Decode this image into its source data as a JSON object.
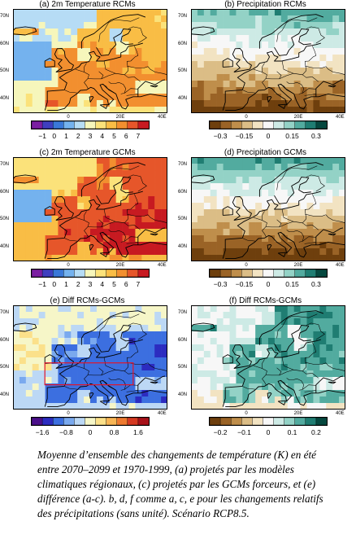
{
  "panels": [
    {
      "title": "(a) 2m Temperature RCMs",
      "field": "temp_rcm",
      "lat_labels": [
        "70N",
        "60N",
        "50N",
        "40N"
      ],
      "lon_labels": [
        "0",
        "20E",
        "40E"
      ],
      "colorbar_ticks": [
        "−1",
        "0",
        "1",
        "2",
        "3",
        "4",
        "5",
        "6",
        "7"
      ],
      "colors": [
        "#7b1fa2",
        "#3f3fbf",
        "#3a78d8",
        "#74b2ee",
        "#b6dcf5",
        "#f6f6bb",
        "#fbe27a",
        "#f9bd45",
        "#f28f2f",
        "#e6562a",
        "#c71a21"
      ]
    },
    {
      "title": "(b) Precipitation RCMs",
      "field": "prec_rcm",
      "lat_labels": [
        "70N",
        "60N",
        "50N",
        "40N"
      ],
      "lon_labels": [
        "0",
        "20E",
        "40E"
      ],
      "colorbar_ticks": [
        "−0.3",
        "−0.15",
        "0",
        "0.15",
        "0.3"
      ],
      "colors": [
        "#6e3f0d",
        "#9a6326",
        "#bf8e4b",
        "#dbbd86",
        "#f2e3c2",
        "#f7f7f7",
        "#cdeae5",
        "#93d2c6",
        "#52ab9f",
        "#1f7d72",
        "#05483f"
      ]
    },
    {
      "title": "(c) 2m Temperature GCMs",
      "field": "temp_gcm",
      "lat_labels": [
        "70N",
        "60N",
        "50N",
        "40N"
      ],
      "lon_labels": [
        "0",
        "20E",
        "40E"
      ],
      "colorbar_ticks": [
        "−1",
        "0",
        "1",
        "2",
        "3",
        "4",
        "5",
        "6",
        "7"
      ],
      "colors": [
        "#7b1fa2",
        "#3f3fbf",
        "#3a78d8",
        "#74b2ee",
        "#b6dcf5",
        "#f6f6bb",
        "#fbe27a",
        "#f9bd45",
        "#f28f2f",
        "#e6562a",
        "#c71a21"
      ]
    },
    {
      "title": "(d) Precipitation GCMs",
      "field": "prec_gcm",
      "lat_labels": [
        "70N",
        "60N",
        "50N",
        "40N"
      ],
      "lon_labels": [
        "0",
        "20E",
        "40E"
      ],
      "colorbar_ticks": [
        "−0.3",
        "−0.15",
        "0",
        "0.15",
        "0.3"
      ],
      "colors": [
        "#6e3f0d",
        "#9a6326",
        "#bf8e4b",
        "#dbbd86",
        "#f2e3c2",
        "#f7f7f7",
        "#cdeae5",
        "#93d2c6",
        "#52ab9f",
        "#1f7d72",
        "#05483f"
      ]
    },
    {
      "title": "(e) Diff RCMs-GCMs",
      "field": "temp_diff",
      "lat_labels": [
        "70N",
        "60N",
        "50N",
        "40N"
      ],
      "lon_labels": [
        "0",
        "20E",
        "40E"
      ],
      "colorbar_ticks": [
        "−1.6",
        "−0.8",
        "0",
        "0.8",
        "1.6"
      ],
      "colors": [
        "#4b0f8a",
        "#2c2cc0",
        "#3c6fe0",
        "#7aa9ee",
        "#bcd8f5",
        "#f6f6c8",
        "#fbe08a",
        "#f7b555",
        "#ee7a30",
        "#d63a22",
        "#a8121a"
      ]
    },
    {
      "title": "(f) Diff RCMs-GCMs",
      "field": "prec_diff",
      "lat_labels": [
        "70N",
        "60N",
        "50N",
        "40N"
      ],
      "lon_labels": [
        "0",
        "20E",
        "40E"
      ],
      "colorbar_ticks": [
        "−0.2",
        "−0.1",
        "0",
        "0.1",
        "0.2"
      ],
      "colors": [
        "#6e3f0d",
        "#9a6326",
        "#bf8e4b",
        "#dbbd86",
        "#f2e3c2",
        "#f7f7f7",
        "#cdeae5",
        "#93d2c6",
        "#52ab9f",
        "#1f7d72",
        "#05483f"
      ]
    }
  ],
  "caption": "Moyenne d’ensemble des changements de température (K) en été entre 2070–2099 et 1970-1999, (a) projetés par les modèles climatiques régionaux, (c) projetés par les GCMs forceurs, et (e) différence (a-c). b, d, f comme a, c, e pour les changements relatifs des précipitations (sans unité). Scénario RCP8.5.",
  "chart_data": [
    {
      "type": "heatmap",
      "title": "(a) 2m Temperature RCMs",
      "xlabel": "",
      "ylabel": "",
      "x_ticks": [
        "0",
        "20E",
        "40E"
      ],
      "y_ticks": [
        "70N",
        "60N",
        "50N",
        "40N"
      ],
      "colorbar": [
        "−1",
        "0",
        "1",
        "2",
        "3",
        "4",
        "5",
        "6",
        "7"
      ],
      "range": [
        -1.5,
        7.5
      ]
    },
    {
      "type": "heatmap",
      "title": "(b) Precipitation RCMs",
      "xlabel": "",
      "ylabel": "",
      "x_ticks": [
        "0",
        "20E",
        "40E"
      ],
      "y_ticks": [
        "70N",
        "60N",
        "50N",
        "40N"
      ],
      "colorbar": [
        "−0.3",
        "−0.15",
        "0",
        "0.15",
        "0.3"
      ],
      "range": [
        -0.375,
        0.375
      ]
    },
    {
      "type": "heatmap",
      "title": "(c) 2m Temperature GCMs",
      "xlabel": "",
      "ylabel": "",
      "x_ticks": [
        "0",
        "20E",
        "40E"
      ],
      "y_ticks": [
        "70N",
        "60N",
        "50N",
        "40N"
      ],
      "colorbar": [
        "−1",
        "0",
        "1",
        "2",
        "3",
        "4",
        "5",
        "6",
        "7"
      ],
      "range": [
        -1.5,
        7.5
      ]
    },
    {
      "type": "heatmap",
      "title": "(d) Precipitation GCMs",
      "xlabel": "",
      "ylabel": "",
      "x_ticks": [
        "0",
        "20E",
        "40E"
      ],
      "y_ticks": [
        "70N",
        "60N",
        "50N",
        "40N"
      ],
      "colorbar": [
        "−0.3",
        "−0.15",
        "0",
        "0.15",
        "0.3"
      ],
      "range": [
        -0.375,
        0.375
      ]
    },
    {
      "type": "heatmap",
      "title": "(e) Diff RCMs-GCMs",
      "xlabel": "",
      "ylabel": "",
      "x_ticks": [
        "0",
        "20E",
        "40E"
      ],
      "y_ticks": [
        "70N",
        "60N",
        "50N",
        "40N"
      ],
      "colorbar": [
        "−1.6",
        "−0.8",
        "0",
        "0.8",
        "1.6"
      ],
      "range": [
        -2.0,
        2.0
      ],
      "annotation": "red rectangle over central Europe"
    },
    {
      "type": "heatmap",
      "title": "(f) Diff RCMs-GCMs",
      "xlabel": "",
      "ylabel": "",
      "x_ticks": [
        "0",
        "20E",
        "40E"
      ],
      "y_ticks": [
        "70N",
        "60N",
        "50N",
        "40N"
      ],
      "colorbar": [
        "−0.2",
        "−0.1",
        "0",
        "0.1",
        "0.2"
      ],
      "range": [
        -0.25,
        0.25
      ]
    }
  ]
}
